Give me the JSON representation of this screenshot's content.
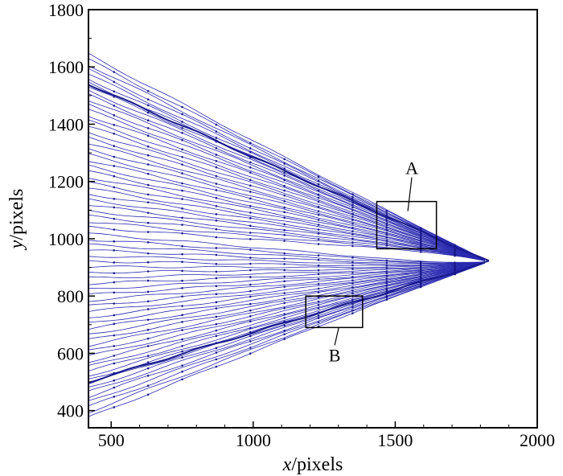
{
  "chart_data": {
    "type": "line",
    "title": "",
    "xlabel": {
      "var": "x",
      "unit": "/pixels"
    },
    "ylabel": {
      "var": "y",
      "unit": "/pixels"
    },
    "xlim": [
      420,
      2000
    ],
    "ylim": [
      340,
      1800
    ],
    "x_ticks": [
      500,
      1000,
      1500,
      2000
    ],
    "y_ticks": [
      400,
      600,
      800,
      1000,
      1200,
      1400,
      1600,
      1800
    ],
    "grid": false,
    "series_color": "#2a2ab0",
    "apex": [
      1830,
      920
    ],
    "upper_separation_line": {
      "from": [
        420,
        1540
      ],
      "to": [
        1830,
        920
      ]
    },
    "lower_separation_line": {
      "from": [
        420,
        500
      ],
      "to": [
        1830,
        920
      ]
    },
    "annotations": [
      {
        "label": "A",
        "box": {
          "x": [
            1435,
            1645
          ],
          "y": [
            965,
            1130
          ]
        }
      },
      {
        "label": "B",
        "box": {
          "x": [
            1185,
            1385
          ],
          "y": [
            690,
            800
          ]
        }
      }
    ]
  }
}
